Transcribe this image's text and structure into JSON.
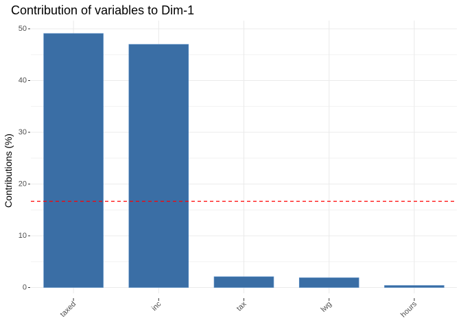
{
  "chart_data": {
    "type": "bar",
    "title": "Contribution of variables to Dim-1",
    "xlabel": "",
    "ylabel": "Contributions (%)",
    "categories": [
      "taxed",
      "inc",
      "tax",
      "lwg",
      "hours"
    ],
    "values": [
      49.1,
      47.0,
      2.1,
      1.9,
      0.4
    ],
    "ylim": [
      0,
      52
    ],
    "yticks": [
      0,
      10,
      20,
      30,
      40,
      50
    ],
    "reference_line": 16.67,
    "bar_color": "#3A6EA5",
    "reference_line_color": "#FF0000",
    "grid": true
  }
}
